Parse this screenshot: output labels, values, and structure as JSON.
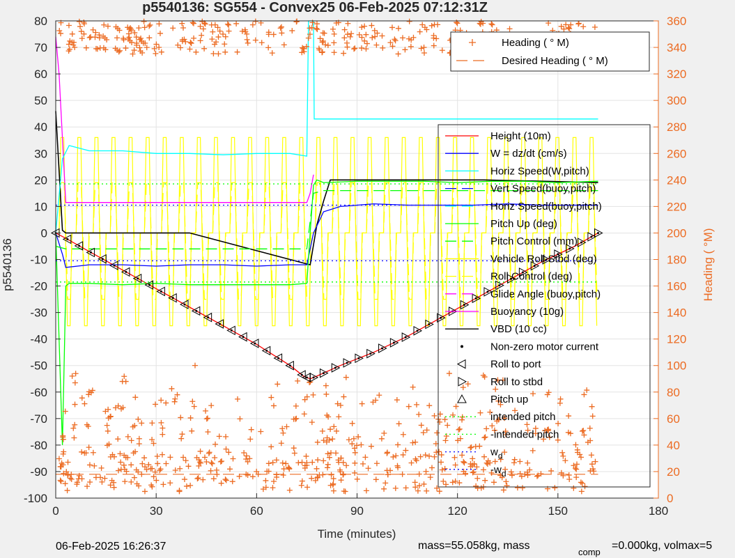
{
  "chart_data": {
    "type": "line",
    "title": "p5540136: SG554 - Convex25 06-Feb-2025 07:12:31Z",
    "xlabel": "Time (minutes)",
    "ylabel": "p5540136",
    "ylabel_right": "Heading (  °M)",
    "xlim": [
      0,
      180
    ],
    "ylim": [
      -100,
      80
    ],
    "ylim_right": [
      0,
      360
    ],
    "x_ticks": [
      0,
      30,
      60,
      90,
      120,
      150,
      180
    ],
    "y_ticks": [
      -100,
      -90,
      -80,
      -70,
      -60,
      -50,
      -40,
      -30,
      -20,
      -10,
      0,
      10,
      20,
      30,
      40,
      50,
      60,
      70,
      80
    ],
    "y_ticks_right": [
      0,
      20,
      40,
      60,
      80,
      100,
      120,
      140,
      160,
      180,
      200,
      220,
      240,
      260,
      280,
      300,
      320,
      340,
      360
    ],
    "grid": true,
    "legend_right_axis": {
      "placement": "top-right",
      "entries": [
        {
          "label": "Heading (  ° M)",
          "color": "#ec6b22",
          "style": "plus"
        },
        {
          "label": "Desired Heading (    ° M)",
          "color": "#ec6b22",
          "style": "dashed"
        }
      ]
    },
    "legend_left_axis": {
      "placement": "right",
      "entries": [
        {
          "label": "Height (10m)",
          "color": "#ff0000",
          "style": "solid"
        },
        {
          "label": "W = dz/dt (cm/s)",
          "color": "#0000ff",
          "style": "solid"
        },
        {
          "label": "Horiz Speed(W,pitch)",
          "color": "#00ffff",
          "style": "solid"
        },
        {
          "label": "Vert Speed(buoy,pitch)",
          "color": "#0000ff",
          "style": "dashed"
        },
        {
          "label": "Horiz Speed(buoy,pitch)",
          "color": "#00ffff",
          "style": "dashed"
        },
        {
          "label": "Pitch Up (deg)",
          "color": "#00ff00",
          "style": "solid"
        },
        {
          "label": "Pitch Control (mm)",
          "color": "#00ff00",
          "style": "dashed"
        },
        {
          "label": "Vehicle Roll Stbd (deg)",
          "color": "#ffff00",
          "style": "solid"
        },
        {
          "label": "Roll Control (deg)",
          "color": "#ffff00",
          "style": "dashed"
        },
        {
          "label": "Glide Angle (buoy,pitch)",
          "color": "#ff00ff",
          "style": "dashed"
        },
        {
          "label": "Buoyancy (10g)",
          "color": "#ff00ff",
          "style": "solid"
        },
        {
          "label": "VBD (10 cc)",
          "color": "#000000",
          "style": "solid"
        },
        {
          "label": "Non-zero motor current",
          "color": "#000000",
          "style": "dot"
        },
        {
          "label": "Roll to port",
          "color": "#000000",
          "style": "tri-left"
        },
        {
          "label": "Roll to stbd",
          "color": "#000000",
          "style": "tri-right"
        },
        {
          "label": "Pitch up",
          "color": "#000000",
          "style": "tri-up"
        },
        {
          "label": "intended pitch",
          "color": "#00ff00",
          "style": "dotted"
        },
        {
          "label": "-intended pitch",
          "color": "#00ff00",
          "style": "dotted"
        },
        {
          "label": "w",
          "sub": "d",
          "color": "#0000ff",
          "style": "dotted"
        },
        {
          "label": "-w",
          "sub": "d",
          "color": "#0000ff",
          "style": "dotted"
        }
      ]
    },
    "series": [
      {
        "name": "Height (10m)",
        "axis": "left",
        "color": "#ff0000",
        "x": [
          0,
          3,
          10,
          20,
          30,
          40,
          50,
          60,
          70,
          74,
          76,
          78,
          85,
          95,
          105,
          115,
          125,
          135,
          145,
          155,
          162
        ],
        "y": [
          0,
          -2,
          -7,
          -14,
          -21,
          -28,
          -35,
          -42,
          -50,
          -54,
          -55,
          -54,
          -50,
          -45,
          -39,
          -32,
          -25,
          -18,
          -11,
          -5,
          0
        ]
      },
      {
        "name": "VBD (10 cc)",
        "axis": "left",
        "color": "#000000",
        "x": [
          0,
          2,
          3,
          40,
          76,
          78,
          80,
          82,
          128,
          162
        ],
        "y": [
          46,
          1,
          0,
          0,
          -12,
          3,
          12,
          20,
          20,
          19
        ]
      },
      {
        "name": "Buoyancy (10g)",
        "axis": "left",
        "color": "#ff00ff",
        "x": [
          0,
          1,
          3,
          40,
          75,
          76,
          77
        ],
        "y": [
          74,
          60,
          11.5,
          11.5,
          11.5,
          15,
          22
        ]
      },
      {
        "name": "W = dz/dt (cm/s)",
        "axis": "left",
        "color": "#0000ff",
        "x": [
          0,
          2,
          3,
          10,
          20,
          30,
          40,
          50,
          60,
          70,
          75,
          77,
          80,
          85,
          95,
          105,
          115,
          125,
          135,
          145,
          155,
          162
        ],
        "y": [
          0,
          -8,
          -13,
          -12,
          -12,
          -12.5,
          -12,
          -12,
          -12.5,
          -12,
          -12,
          0,
          8,
          10,
          11,
          10.5,
          10.5,
          10.5,
          11,
          10.5,
          10.5,
          10.5
        ]
      },
      {
        "name": "Horiz Speed(W,pitch)",
        "axis": "left",
        "color": "#00ffff",
        "x": [
          0,
          2,
          4,
          10,
          20,
          30,
          40,
          50,
          60,
          70,
          75,
          75.5,
          77,
          77.2,
          77.5,
          162
        ],
        "y": [
          0,
          28,
          33,
          31,
          31,
          30,
          30,
          29.5,
          30,
          30,
          29,
          80,
          80,
          43,
          43,
          43
        ]
      },
      {
        "name": "Pitch Up (deg)",
        "axis": "left",
        "color": "#00ff00",
        "x": [
          0,
          2,
          3,
          4,
          10,
          20,
          30,
          40,
          50,
          60,
          70,
          75,
          76,
          77,
          78,
          80,
          90,
          100,
          110,
          120,
          130,
          140,
          150,
          162
        ],
        "y": [
          0,
          -80,
          -20,
          -19,
          -19,
          -19.5,
          -19,
          -19.5,
          -19.5,
          -19.5,
          -19.5,
          -19,
          0,
          18,
          20,
          19,
          19.5,
          19.5,
          19.5,
          19,
          19.5,
          19.5,
          19,
          19.5
        ]
      },
      {
        "name": "Pitch Control (mm)",
        "axis": "left",
        "color": "#00ff00",
        "x": [
          0,
          3,
          40,
          75,
          77,
          80,
          162
        ],
        "y": [
          -5,
          -6,
          -6,
          -6,
          15,
          16,
          16
        ]
      },
      {
        "name": "intended pitch",
        "axis": "left",
        "color": "#00ff00",
        "x": [
          0,
          162
        ],
        "y": [
          18.5,
          18.5
        ]
      },
      {
        "name": "-intended pitch",
        "axis": "left",
        "color": "#00ff00",
        "x": [
          0,
          162
        ],
        "y": [
          -18.5,
          -18.5
        ]
      },
      {
        "name": "w",
        "axis": "left",
        "color": "#0000ff",
        "x": [
          0,
          162
        ],
        "y": [
          10.5,
          10.5
        ]
      },
      {
        "name": "-w",
        "axis": "left",
        "color": "#0000ff",
        "x": [
          0,
          162
        ],
        "y": [
          -10.5,
          -10.5
        ]
      },
      {
        "name": "Desired Heading (    ° M)",
        "axis": "right",
        "color": "#ec6b22",
        "x": [
          0,
          162
        ],
        "y": [
          18,
          18
        ]
      }
    ],
    "roll_period_minutes": 5.1,
    "heading_plus_count": 900,
    "marker_x": [
      0,
      3.5,
      7,
      10.5,
      14,
      17.5,
      21,
      24.5,
      28,
      31.5,
      35,
      38.5,
      42,
      45.5,
      49,
      52.5,
      56,
      59.5,
      63,
      66.5,
      70,
      73.5,
      75,
      77,
      80,
      83.5,
      87,
      90.5,
      94,
      97.5,
      101,
      104.5,
      108,
      111.5,
      115,
      118.5,
      122,
      125.5,
      129,
      132.5,
      136,
      139.5,
      143,
      146.5,
      150,
      153.5,
      157,
      160,
      162
    ]
  },
  "footer": {
    "date": "06-Feb-2025 16:26:37",
    "mass_text": "mass=55.058kg, mass",
    "comp_sub": "comp",
    "comp_text": "=0.000kg, volmax=5"
  }
}
